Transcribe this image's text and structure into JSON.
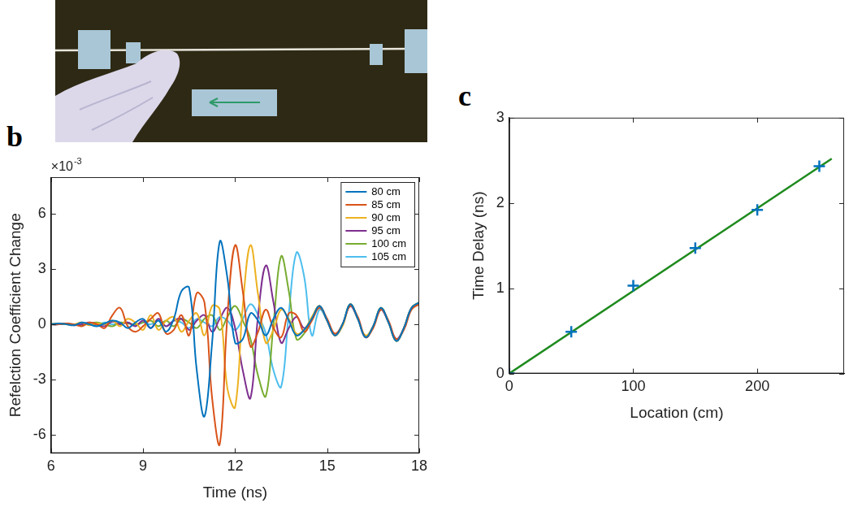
{
  "chart_data": [
    {
      "type": "line",
      "panel": "b",
      "ylabel": "Refelction Coefficient Change",
      "xlabel": "Time (ns)",
      "annotations": [
        {
          "text": "×10",
          "superscript": "-3"
        }
      ],
      "x": [
        6,
        6.25,
        6.5,
        6.75,
        7,
        7.25,
        7.5,
        7.75,
        8,
        8.25,
        8.5,
        8.75,
        9,
        9.25,
        9.5,
        9.75,
        10,
        10.25,
        10.5,
        10.75,
        11,
        11.25,
        11.5,
        11.75,
        12,
        12.25,
        12.5,
        12.75,
        13,
        13.25,
        13.5,
        13.75,
        14,
        14.25,
        14.5,
        14.75,
        15,
        15.25,
        15.5,
        15.75,
        16,
        16.25,
        16.5,
        16.75,
        17,
        17.25,
        17.5,
        17.75,
        18
      ],
      "series": [
        {
          "name": "80 cm",
          "color": "#0072BD",
          "values": [
            0,
            0.05,
            0,
            -0.05,
            0.1,
            0,
            -0.1,
            0.05,
            0.2,
            0.1,
            -0.2,
            0.1,
            0.3,
            -0.2,
            0.2,
            -0.4,
            0.3,
            1.8,
            2.0,
            -2.5,
            -5.0,
            -1.0,
            4.5,
            2.5,
            -1.0,
            -0.8,
            0.6,
            0.2,
            -0.6,
            0.3,
            0.9,
            0.2,
            -0.6,
            -0.3,
            0.3,
            1.0,
            0.2,
            -0.6,
            0.0,
            1.1,
            0.3,
            -0.7,
            -0.1,
            0.9,
            0.1,
            -0.9,
            -0.2,
            0.9,
            1.2
          ]
        },
        {
          "name": "85 cm",
          "color": "#D95319",
          "values": [
            0,
            0,
            0.05,
            0,
            -0.1,
            0.1,
            0,
            -0.2,
            0.5,
            0.9,
            -0.1,
            -0.4,
            -0.1,
            0.3,
            0.6,
            -0.5,
            -0.3,
            0.5,
            -0.6,
            1.7,
            1.2,
            -4.0,
            -6.5,
            0.5,
            4.3,
            1.8,
            -1.2,
            -0.4,
            0.8,
            -0.2,
            -0.7,
            0.6,
            0.5,
            -0.4,
            0.2,
            0.9,
            0.3,
            -0.5,
            0.0,
            1.0,
            0.4,
            -0.7,
            -0.2,
            0.8,
            0.2,
            -0.8,
            -0.3,
            0.8,
            1.1
          ]
        },
        {
          "name": "90 cm",
          "color": "#EDB120",
          "values": [
            0,
            0.05,
            0,
            0,
            0.1,
            -0.05,
            0.05,
            0,
            0.2,
            -0.1,
            0.3,
            0.1,
            -0.3,
            0.5,
            -0.3,
            0.2,
            0.4,
            -0.4,
            0.2,
            0.6,
            -0.6,
            1.0,
            0.8,
            -3.5,
            -4.5,
            1.0,
            4.3,
            1.6,
            -1.0,
            -0.3,
            0.8,
            0.3,
            -0.5,
            -0.3,
            0.4,
            1.0,
            0.2,
            -0.6,
            -0.1,
            1.1,
            0.3,
            -0.6,
            -0.1,
            0.9,
            0.1,
            -0.9,
            -0.2,
            0.9,
            1.2
          ]
        },
        {
          "name": "95 cm",
          "color": "#7E2F8E",
          "values": [
            0,
            0,
            0.05,
            -0.05,
            0,
            0.1,
            0,
            -0.1,
            0.15,
            0,
            0.1,
            -0.1,
            0.2,
            -0.2,
            0.3,
            -0.1,
            0.2,
            0.3,
            -0.3,
            0.2,
            0.5,
            -0.4,
            0.3,
            0.9,
            -0.2,
            -2.5,
            -4.0,
            0.5,
            3.2,
            1.2,
            -1.0,
            -0.2,
            0.4,
            -0.2,
            0.3,
            1.0,
            0.2,
            -0.6,
            0.0,
            1.0,
            0.3,
            -0.7,
            -0.1,
            0.8,
            0.1,
            -0.8,
            -0.2,
            0.9,
            1.1
          ]
        },
        {
          "name": "100 cm",
          "color": "#77AC30",
          "values": [
            0,
            0.05,
            0,
            0,
            -0.05,
            0.05,
            0.1,
            0,
            -0.1,
            0.1,
            0.05,
            0,
            0.1,
            0.2,
            -0.1,
            0.2,
            -0.1,
            0.3,
            0.1,
            -0.2,
            0.3,
            0.5,
            -0.3,
            0.4,
            1.0,
            0.2,
            -0.8,
            -2.8,
            -3.9,
            0.0,
            3.7,
            1.8,
            -0.8,
            -0.5,
            0.3,
            1.0,
            0.2,
            -0.6,
            0.0,
            1.1,
            0.3,
            -0.7,
            -0.1,
            0.9,
            0.1,
            -0.9,
            -0.2,
            0.9,
            1.2
          ]
        },
        {
          "name": "105 cm",
          "color": "#4DBEEE",
          "values": [
            0,
            0,
            0.05,
            0,
            0,
            0.05,
            -0.05,
            0.1,
            0,
            0.05,
            0.1,
            -0.05,
            0.1,
            0,
            0.2,
            -0.1,
            0.2,
            0.1,
            -0.2,
            0.3,
            0.1,
            -0.1,
            0.4,
            0.2,
            -0.3,
            0.3,
            1.1,
            0.5,
            -0.5,
            -2.5,
            -3.4,
            0.6,
            3.9,
            2.6,
            -0.6,
            0.8,
            0.2,
            -0.6,
            0.0,
            1.0,
            0.3,
            -0.7,
            -0.1,
            0.9,
            0.1,
            -0.9,
            -0.2,
            0.9,
            1.1
          ]
        }
      ],
      "xlim": [
        6,
        18
      ],
      "xticks": [
        6,
        9,
        12,
        15,
        18
      ],
      "ylim": [
        -7,
        8
      ],
      "yticks": [
        -6,
        -3,
        0,
        3,
        6
      ],
      "grid": false,
      "legend": "top-right"
    },
    {
      "type": "scatter",
      "panel": "c",
      "xlabel": "Location (cm)",
      "ylabel": "Time Delay (ns)",
      "series": [
        {
          "type": "line",
          "color": "#1E8A1E",
          "line_style": "solid",
          "x": [
            0,
            260
          ],
          "values": [
            0,
            2.52
          ]
        },
        {
          "type": "scatter",
          "color": "#0072BD",
          "marker": "plus",
          "x": [
            0,
            50,
            100,
            150,
            200,
            250
          ],
          "values": [
            0,
            0.49,
            1.03,
            1.47,
            1.92,
            2.43
          ]
        }
      ],
      "xlim": [
        0,
        270
      ],
      "xticks": [
        0,
        100,
        200
      ],
      "ylim": [
        0,
        3
      ],
      "yticks": [
        0,
        1,
        2,
        3
      ],
      "grid": false
    }
  ]
}
